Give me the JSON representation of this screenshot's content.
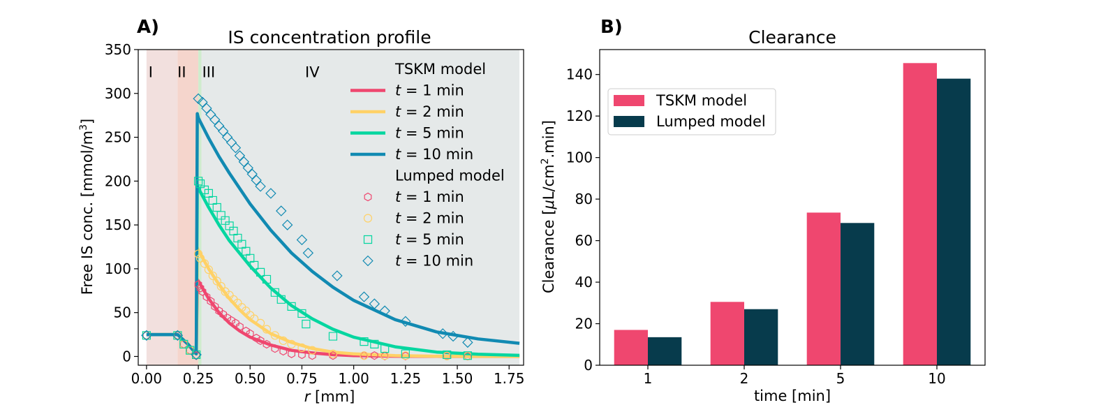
{
  "chart_data": [
    {
      "panel_label": "A)",
      "type": "line",
      "title": "IS concentration profile",
      "xlabel_italic": "r",
      "xlabel_rest": " [mm]",
      "ylabel": "Free IS conc. [mmol/m",
      "ylabel_sup": "3",
      "ylabel_end": "]",
      "xlim": [
        -0.04,
        1.82
      ],
      "ylim": [
        -10,
        350
      ],
      "xticks": [
        0.0,
        0.25,
        0.5,
        0.75,
        1.0,
        1.25,
        1.5,
        1.75
      ],
      "xtick_labels": [
        "0.00",
        "0.25",
        "0.50",
        "0.75",
        "1.00",
        "1.25",
        "1.50",
        "1.75"
      ],
      "yticks": [
        0,
        50,
        100,
        150,
        200,
        250,
        300,
        350
      ],
      "ytick_labels": [
        "0",
        "50",
        "100",
        "150",
        "200",
        "250",
        "300",
        "350"
      ],
      "regions": [
        {
          "label": "I",
          "x0": 0.0,
          "x1": 0.15,
          "color": "#f2e0de"
        },
        {
          "label": "II",
          "x0": 0.15,
          "x1": 0.25,
          "color": "#f5d5cc"
        },
        {
          "label": "III",
          "x0": 0.25,
          "x1": 0.265,
          "color": "#cfeccd"
        },
        {
          "label": "IV",
          "x0": 0.265,
          "x1": 1.8,
          "color": "#e5e9e9"
        }
      ],
      "region_label_y": 325,
      "region_label_x": [
        0.02,
        0.17,
        0.3,
        0.8
      ],
      "legend": {
        "position": "upper right",
        "group1_title": "TSKM model",
        "group2_title": "Lumped model",
        "t_symbol": "t",
        "entries": [
          " = 1 min",
          " = 2 min",
          " = 5 min",
          " = 10 min"
        ]
      },
      "series": [
        {
          "model": "TSKM model",
          "time_min": 1,
          "color": "#ef476f",
          "style": "line",
          "x": [
            0.0,
            0.15,
            0.2,
            0.24,
            0.245,
            0.25,
            0.3,
            0.35,
            0.4,
            0.45,
            0.5,
            0.6,
            0.7,
            0.8,
            0.9,
            1.0,
            1.2,
            1.4,
            1.6,
            1.8
          ],
          "y": [
            25,
            25,
            14,
            3,
            88,
            86,
            66,
            50,
            38,
            29,
            22,
            13,
            7,
            4,
            2,
            1,
            0.3,
            0.1,
            0,
            0
          ]
        },
        {
          "model": "TSKM model",
          "time_min": 2,
          "color": "#ffd166",
          "style": "line",
          "x": [
            0.0,
            0.15,
            0.2,
            0.24,
            0.245,
            0.25,
            0.3,
            0.35,
            0.4,
            0.45,
            0.5,
            0.6,
            0.7,
            0.8,
            0.9,
            1.0,
            1.2,
            1.4,
            1.6,
            1.8
          ],
          "y": [
            25,
            25,
            14,
            3,
            124,
            121,
            100,
            82,
            66,
            53,
            42,
            26,
            16,
            9,
            5,
            3,
            1,
            0.3,
            0.1,
            0
          ]
        },
        {
          "model": "TSKM model",
          "time_min": 5,
          "color": "#06d6a0",
          "style": "line",
          "x": [
            0.0,
            0.15,
            0.2,
            0.24,
            0.245,
            0.25,
            0.3,
            0.35,
            0.4,
            0.5,
            0.6,
            0.7,
            0.8,
            0.9,
            1.0,
            1.2,
            1.4,
            1.6,
            1.8
          ],
          "y": [
            25,
            25,
            14,
            3,
            196,
            192,
            170,
            150,
            132,
            103,
            78,
            58,
            43,
            31,
            22,
            11,
            5,
            2.5,
            1.2
          ]
        },
        {
          "model": "TSKM model",
          "time_min": 10,
          "color": "#118ab2",
          "style": "line",
          "x": [
            0.0,
            0.15,
            0.2,
            0.24,
            0.245,
            0.25,
            0.3,
            0.35,
            0.4,
            0.5,
            0.6,
            0.7,
            0.8,
            0.9,
            1.0,
            1.2,
            1.4,
            1.6,
            1.8
          ],
          "y": [
            25,
            25,
            14,
            3,
            277,
            272,
            249,
            228,
            209,
            174,
            144,
            118,
            97,
            79,
            64,
            42,
            28,
            20,
            15
          ]
        },
        {
          "model": "Lumped model",
          "time_min": 1,
          "color": "#ef476f",
          "style": "marker",
          "marker": "hexagon",
          "x": [
            0.0,
            0.15,
            0.18,
            0.21,
            0.24,
            0.25,
            0.26,
            0.27,
            0.29,
            0.31,
            0.33,
            0.35,
            0.37,
            0.39,
            0.41,
            0.43,
            0.45,
            0.48,
            0.5,
            0.53,
            0.55,
            0.58,
            0.62,
            0.66,
            0.7,
            0.75,
            0.8,
            0.9,
            1.05,
            1.1,
            1.15,
            1.25,
            1.45,
            1.55
          ],
          "y": [
            24,
            24,
            14,
            7,
            1,
            82,
            78,
            74,
            68,
            63,
            57,
            52,
            48,
            44,
            41,
            38,
            34,
            29,
            26,
            21,
            18,
            14,
            9,
            6,
            3,
            2,
            1,
            1,
            1,
            1,
            0.5,
            0.5,
            0.5,
            0.3
          ]
        },
        {
          "model": "Lumped model",
          "time_min": 2,
          "color": "#ffd166",
          "style": "marker",
          "marker": "circle",
          "x": [
            0.0,
            0.15,
            0.18,
            0.21,
            0.24,
            0.25,
            0.26,
            0.28,
            0.3,
            0.32,
            0.34,
            0.36,
            0.38,
            0.4,
            0.42,
            0.44,
            0.46,
            0.48,
            0.5,
            0.52,
            0.55,
            0.58,
            0.62,
            0.66,
            0.7,
            0.75,
            0.8,
            0.9,
            1.05,
            1.15,
            1.25,
            1.45,
            1.55
          ],
          "y": [
            24,
            24,
            14,
            7,
            2,
            117,
            112,
            106,
            99,
            92,
            86,
            80,
            74,
            70,
            65,
            61,
            56,
            52,
            47,
            43,
            38,
            31,
            24,
            18,
            14,
            10,
            7,
            3,
            1,
            1,
            1,
            0.5,
            0.5
          ]
        },
        {
          "model": "Lumped model",
          "time_min": 5,
          "color": "#06d6a0",
          "style": "marker",
          "marker": "square",
          "x": [
            0.0,
            0.15,
            0.18,
            0.21,
            0.24,
            0.25,
            0.26,
            0.28,
            0.3,
            0.32,
            0.34,
            0.36,
            0.38,
            0.4,
            0.42,
            0.44,
            0.46,
            0.48,
            0.5,
            0.52,
            0.55,
            0.58,
            0.62,
            0.65,
            0.7,
            0.75,
            0.77,
            0.9,
            1.05,
            1.1,
            1.15,
            1.25,
            1.45,
            1.55
          ],
          "y": [
            24,
            24,
            14,
            7,
            2,
            200,
            197,
            190,
            186,
            178,
            170,
            161,
            155,
            149,
            143,
            135,
            128,
            120,
            112,
            104,
            96,
            88,
            73,
            65,
            57,
            49,
            37,
            23,
            17,
            14,
            9,
            3,
            2,
            1
          ]
        },
        {
          "model": "Lumped model",
          "time_min": 10,
          "color": "#118ab2",
          "style": "marker",
          "marker": "diamond",
          "x": [
            0.0,
            0.15,
            0.24,
            0.25,
            0.27,
            0.29,
            0.31,
            0.33,
            0.35,
            0.37,
            0.39,
            0.41,
            0.43,
            0.45,
            0.47,
            0.49,
            0.51,
            0.53,
            0.55,
            0.6,
            0.65,
            0.68,
            0.75,
            0.78,
            0.92,
            1.05,
            1.1,
            1.15,
            1.25,
            1.43,
            1.48,
            1.55
          ],
          "y": [
            24,
            24,
            2,
            294,
            290,
            283,
            276,
            270,
            263,
            257,
            250,
            244,
            238,
            229,
            222,
            215,
            208,
            201,
            194,
            186,
            166,
            150,
            133,
            118,
            92,
            68,
            60,
            52,
            40,
            26,
            23,
            16
          ]
        }
      ]
    },
    {
      "panel_label": "B)",
      "type": "bar",
      "title": "Clearance",
      "xlabel": "time [min]",
      "ylabel_pre": "Clearance [",
      "ylabel_mu": "μ",
      "ylabel_mid": "L/cm",
      "ylabel_sup": "2",
      "ylabel_end": ".min]",
      "categories": [
        "1",
        "2",
        "5",
        "10"
      ],
      "ylim": [
        0,
        152
      ],
      "yticks": [
        0,
        20,
        40,
        60,
        80,
        100,
        120,
        140
      ],
      "ytick_labels": [
        "0",
        "20",
        "40",
        "60",
        "80",
        "100",
        "120",
        "140"
      ],
      "legend": {
        "position": "upper left"
      },
      "series": [
        {
          "name": "TSKM model",
          "color": "#ef476f",
          "values": [
            17,
            30.5,
            73.5,
            145.5
          ]
        },
        {
          "name": "Lumped model",
          "color": "#073b4c",
          "values": [
            13.5,
            27,
            68.5,
            138
          ]
        }
      ]
    }
  ]
}
